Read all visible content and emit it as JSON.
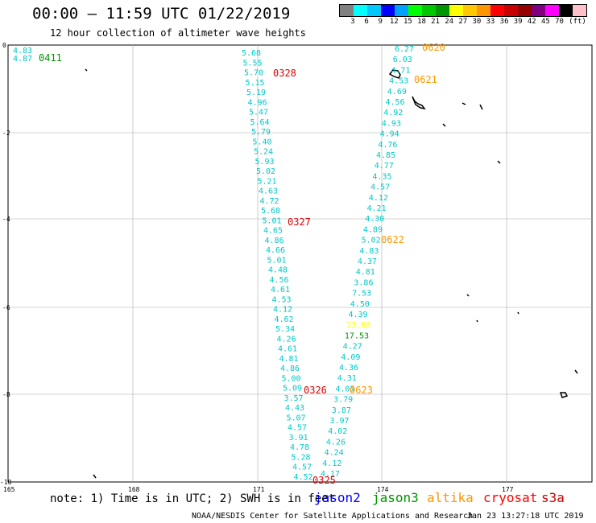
{
  "header": {
    "title": "00:00 — 11:59 UTC 01/22/2019",
    "subtitle": "12 hour collection of altimeter wave heights"
  },
  "legend": {
    "unit": "(ft)",
    "colors": [
      "#808080",
      "#00ffff",
      "#00c8ff",
      "#0000ff",
      "#00a0ff",
      "#00ff00",
      "#00c800",
      "#009600",
      "#ffff00",
      "#ffc800",
      "#ff9600",
      "#ff0000",
      "#c80000",
      "#960000",
      "#800080",
      "#ff00ff",
      "#000000",
      "#ffc0cb"
    ],
    "labels": [
      "3",
      "6",
      "9",
      "12",
      "15",
      "18",
      "21",
      "24",
      "27",
      "30",
      "33",
      "36",
      "39",
      "42",
      "45",
      "70"
    ]
  },
  "map": {
    "lon_labels": [
      "165",
      "168",
      "171",
      "174",
      "177"
    ],
    "lat_labels": [
      "0",
      "-2",
      "-4",
      "-6",
      "-8",
      "-10"
    ],
    "track_labels": {
      "t0328": "0328",
      "t0327": "0327",
      "t0326": "0326",
      "t0325": "0325",
      "t0411": "0411",
      "t0620": "0620",
      "t0621": "0621",
      "t0622": "0622",
      "t0623": "0623"
    },
    "corner_values": [
      "4.83",
      "4.87"
    ],
    "track_a_values": [
      "5.68",
      "5.55",
      "5.70",
      "5.15",
      "5.19",
      "4.96",
      "5.47",
      "5.64",
      "5.79",
      "5.40",
      "5.24",
      "5.93",
      "5.02",
      "5.21",
      "4.63",
      "4.72",
      "5.68",
      "5.01",
      "4.65",
      "4.86",
      "4.66",
      "5.01",
      "4.48",
      "4.56",
      "4.61",
      "4.53",
      "4.12",
      "4.62",
      "5.34",
      "4.26",
      "4.61",
      "4.81",
      "4.86",
      "5.00",
      "5.09",
      "3.57",
      "4.43",
      "5.07",
      "4.57",
      "3.91",
      "4.78",
      "5.28",
      "4.57",
      "4.52"
    ],
    "track_b_values": [
      "6.27",
      "6.03",
      "4.71",
      "4.53",
      "4.69",
      "4.56",
      "4.92",
      "4.93",
      "4.94",
      "4.76",
      "4.85",
      "4.77",
      "4.35",
      "4.57",
      "4.12",
      "4.21",
      "4.30",
      "4.89",
      "5.02",
      "4.83",
      "4.37",
      "4.81",
      "3.86",
      "7.53",
      "4.50",
      "4.39",
      "23.68",
      "17.53",
      "4.27",
      "4.09",
      "4.36",
      "4.31",
      "4.05",
      "3.79",
      "3.87",
      "3.97",
      "4.02",
      "4.26",
      "4.24",
      "4.12",
      "4.17"
    ]
  },
  "footer": {
    "note": "note: 1) Time is in UTC; 2) SWH is in feet",
    "satellites": [
      {
        "name": "jason2",
        "color": "#0000ff"
      },
      {
        "name": "jason3",
        "color": "#009600"
      },
      {
        "name": "altika",
        "color": "#ff9600"
      },
      {
        "name": "cryosat",
        "color": "#ff0000"
      },
      {
        "name": "s3a",
        "color": "#c80000"
      }
    ],
    "credit": "NOAA/NESDIS Center for Satellite Applications and Research",
    "timestamp": "Jan 23 13:27:18 UTC 2019"
  }
}
